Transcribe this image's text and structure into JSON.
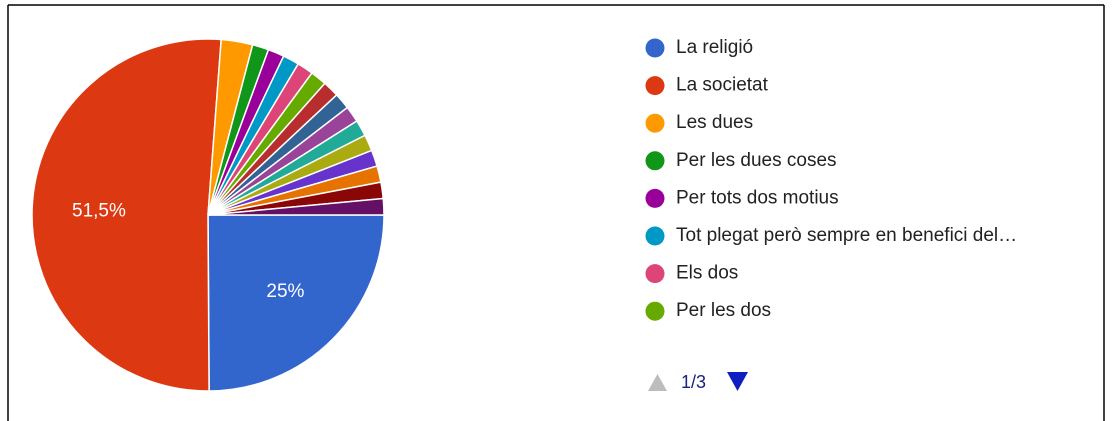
{
  "chart_data": {
    "type": "pie",
    "categories": [
      "La religió",
      "La societat",
      "Les dues",
      "Per les dues coses",
      "Per tots dos motius",
      "Tot plegat però sempre en benefici del…",
      "Els dos",
      "Per les dos",
      null,
      null,
      null,
      null,
      null,
      null,
      null,
      null,
      null
    ],
    "values": [
      25,
      51.5,
      2.9,
      1.5,
      1.5,
      1.5,
      1.5,
      1.5,
      1.5,
      1.5,
      1.5,
      1.5,
      1.5,
      1.5,
      1.5,
      1.5,
      1.5
    ],
    "value_labels": [
      "25%",
      "51,5%",
      null,
      null,
      null,
      null,
      null,
      null,
      null,
      null,
      null,
      null,
      null,
      null,
      null,
      null,
      null
    ],
    "colors": [
      "#3366cc",
      "#dc3912",
      "#ff9900",
      "#109618",
      "#990099",
      "#0099c6",
      "#dd4477",
      "#66aa00",
      "#b82e2e",
      "#316395",
      "#994499",
      "#22aa99",
      "#aaaa11",
      "#6633cc",
      "#e67300",
      "#8b0707",
      "#651067"
    ],
    "pager": "1/3"
  }
}
